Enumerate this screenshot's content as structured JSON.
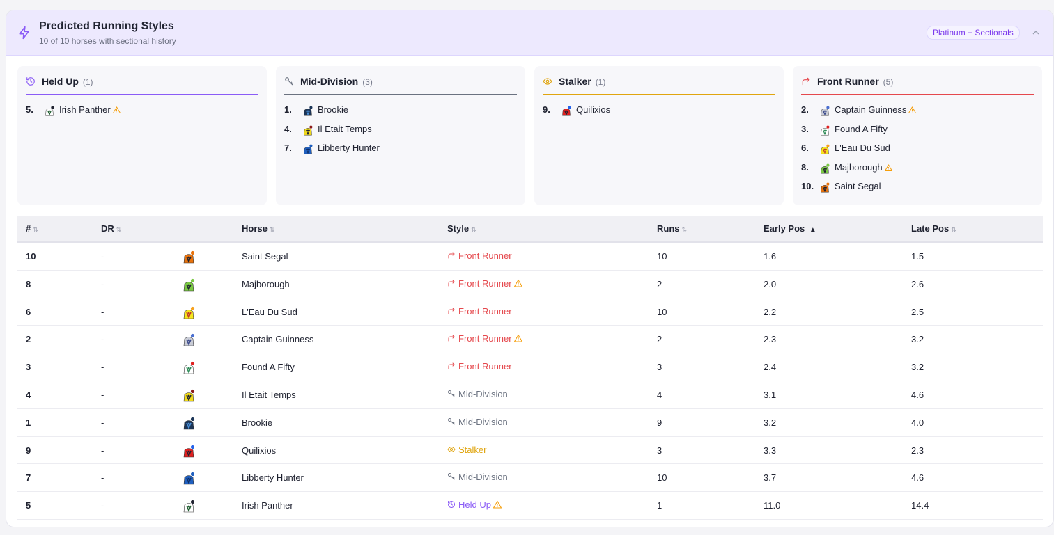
{
  "header": {
    "title": "Predicted Running Styles",
    "subtitle": "10 of 10 horses with sectional history",
    "badge": "Platinum + Sectionals",
    "icon": "lightning-icon",
    "collapse_icon": "chevron-up-icon"
  },
  "colors": {
    "held_up": "#8b5cf6",
    "mid_division": "#6b7280",
    "stalker": "#e0a50f",
    "front_runner": "#e5484d",
    "warning": "#f59e0b"
  },
  "cards": [
    {
      "key": "held_up",
      "name": "Held Up",
      "count": "(1)",
      "icon": "clock-icon",
      "items": [
        {
          "pos": "5.",
          "horse": "Irish Panther",
          "warn": true
        }
      ]
    },
    {
      "key": "mid_division",
      "name": "Mid-Division",
      "count": "(3)",
      "icon": "key-icon",
      "items": [
        {
          "pos": "1.",
          "horse": "Brookie",
          "warn": false
        },
        {
          "pos": "4.",
          "horse": "Il Etait Temps",
          "warn": false
        },
        {
          "pos": "7.",
          "horse": "Libberty Hunter",
          "warn": false
        }
      ]
    },
    {
      "key": "stalker",
      "name": "Stalker",
      "count": "(1)",
      "icon": "eye-icon",
      "items": [
        {
          "pos": "9.",
          "horse": "Quilixios",
          "warn": false
        }
      ]
    },
    {
      "key": "front_runner",
      "name": "Front Runner",
      "count": "(5)",
      "icon": "arrow-turn-icon",
      "items": [
        {
          "pos": "2.",
          "horse": "Captain Guinness",
          "warn": true
        },
        {
          "pos": "3.",
          "horse": "Found A Fifty",
          "warn": false
        },
        {
          "pos": "6.",
          "horse": "L'Eau Du Sud",
          "warn": false
        },
        {
          "pos": "8.",
          "horse": "Majborough",
          "warn": true
        },
        {
          "pos": "10.",
          "horse": "Saint Segal",
          "warn": false
        }
      ]
    }
  ],
  "table": {
    "columns": [
      "#",
      "DR",
      "Horse",
      "Style",
      "Runs",
      "Early Pos",
      "Late Pos"
    ],
    "sorted_column": "Early Pos",
    "sort_direction": "▲",
    "rows": [
      {
        "num": "10",
        "dr": "-",
        "horse": "Saint Segal",
        "style": "Front Runner",
        "style_key": "front_runner",
        "warn": false,
        "runs": "10",
        "early": "1.6",
        "late": "1.5"
      },
      {
        "num": "8",
        "dr": "-",
        "horse": "Majborough",
        "style": "Front Runner",
        "style_key": "front_runner",
        "warn": true,
        "runs": "2",
        "early": "2.0",
        "late": "2.6"
      },
      {
        "num": "6",
        "dr": "-",
        "horse": "L'Eau Du Sud",
        "style": "Front Runner",
        "style_key": "front_runner",
        "warn": false,
        "runs": "10",
        "early": "2.2",
        "late": "2.5"
      },
      {
        "num": "2",
        "dr": "-",
        "horse": "Captain Guinness",
        "style": "Front Runner",
        "style_key": "front_runner",
        "warn": true,
        "runs": "2",
        "early": "2.3",
        "late": "3.2"
      },
      {
        "num": "3",
        "dr": "-",
        "horse": "Found A Fifty",
        "style": "Front Runner",
        "style_key": "front_runner",
        "warn": false,
        "runs": "3",
        "early": "2.4",
        "late": "3.2"
      },
      {
        "num": "4",
        "dr": "-",
        "horse": "Il Etait Temps",
        "style": "Mid-Division",
        "style_key": "mid_division",
        "warn": false,
        "runs": "4",
        "early": "3.1",
        "late": "4.6"
      },
      {
        "num": "1",
        "dr": "-",
        "horse": "Brookie",
        "style": "Mid-Division",
        "style_key": "mid_division",
        "warn": false,
        "runs": "9",
        "early": "3.2",
        "late": "4.0"
      },
      {
        "num": "9",
        "dr": "-",
        "horse": "Quilixios",
        "style": "Stalker",
        "style_key": "stalker",
        "warn": false,
        "runs": "3",
        "early": "3.3",
        "late": "2.3"
      },
      {
        "num": "7",
        "dr": "-",
        "horse": "Libberty Hunter",
        "style": "Mid-Division",
        "style_key": "mid_division",
        "warn": false,
        "runs": "10",
        "early": "3.7",
        "late": "4.6"
      },
      {
        "num": "5",
        "dr": "-",
        "horse": "Irish Panther",
        "style": "Held Up",
        "style_key": "held_up",
        "warn": true,
        "runs": "1",
        "early": "11.0",
        "late": "14.4"
      }
    ]
  },
  "silks": {
    "Saint Segal": {
      "body": "#e8720c",
      "accent": "#1f2230",
      "cap": "#e8720c"
    },
    "Majborough": {
      "body": "#7ac943",
      "accent": "#1f2230",
      "cap": "#7ac943"
    },
    "L'Eau Du Sud": {
      "body": "#f7e61d",
      "accent": "#c0392b",
      "cap": "#f7a11d"
    },
    "Captain Guinness": {
      "body": "#c9ccd6",
      "accent": "#3b4a8c",
      "cap": "#4a6fd1"
    },
    "Found A Fifty": {
      "body": "#ffffff",
      "accent": "#2e8b57",
      "cap": "#e02020"
    },
    "Il Etait Temps": {
      "body": "#f0d91a",
      "accent": "#1f2230",
      "cap": "#8b1a1a"
    },
    "Brookie": {
      "body": "#1c3557",
      "accent": "#4a90d9",
      "cap": "#1c3557"
    },
    "Quilixios": {
      "body": "#e02020",
      "accent": "#1f2230",
      "cap": "#2563eb"
    },
    "Libberty Hunter": {
      "body": "#1f5fbf",
      "accent": "#0d2e66",
      "cap": "#1f5fbf"
    },
    "Irish Panther": {
      "body": "#ffffff",
      "accent": "#1d5c2e",
      "cap": "#1f2230"
    }
  }
}
